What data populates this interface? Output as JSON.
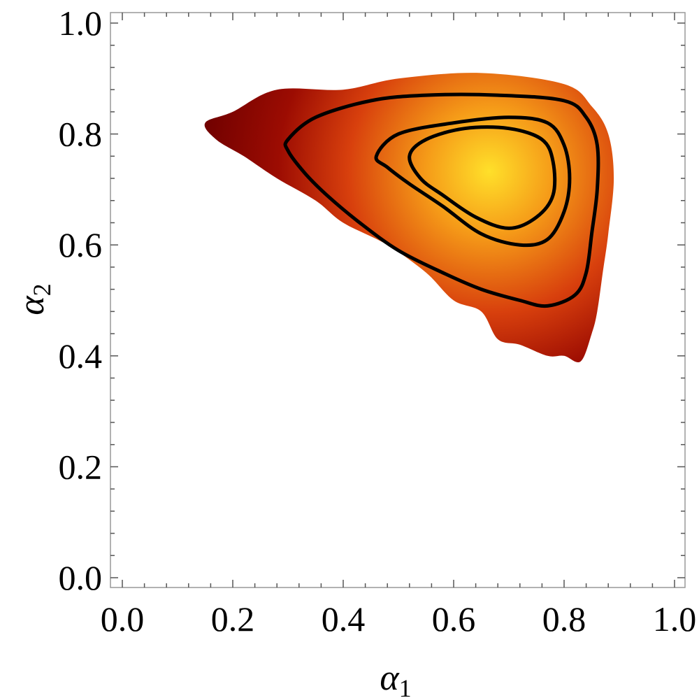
{
  "chart_data": {
    "type": "heatmap",
    "title": "",
    "xlabel": {
      "symbol": "α",
      "subscript": "1"
    },
    "ylabel": {
      "symbol": "α",
      "subscript": "2"
    },
    "xlim": [
      0.0,
      1.0
    ],
    "ylim": [
      0.0,
      1.0
    ],
    "x_ticks": [
      "0.0",
      "0.2",
      "0.4",
      "0.6",
      "0.8",
      "1.0"
    ],
    "y_ticks": [
      "0.0",
      "0.2",
      "0.4",
      "0.6",
      "0.8",
      "1.0"
    ],
    "grid": false,
    "legend": "none",
    "density": {
      "peak": [
        0.66,
        0.73
      ],
      "color_scale": [
        "#7a0000",
        "#c22a0a",
        "#f06a12",
        "#ffd21f"
      ],
      "support": [
        [
          0.15,
          0.82
        ],
        [
          0.2,
          0.84
        ],
        [
          0.28,
          0.88
        ],
        [
          0.4,
          0.88
        ],
        [
          0.5,
          0.9
        ],
        [
          0.65,
          0.91
        ],
        [
          0.8,
          0.89
        ],
        [
          0.85,
          0.85
        ],
        [
          0.88,
          0.8
        ],
        [
          0.89,
          0.72
        ],
        [
          0.88,
          0.62
        ],
        [
          0.87,
          0.55
        ],
        [
          0.86,
          0.48
        ],
        [
          0.85,
          0.44
        ],
        [
          0.83,
          0.39
        ],
        [
          0.8,
          0.4
        ],
        [
          0.77,
          0.4
        ],
        [
          0.72,
          0.42
        ],
        [
          0.68,
          0.43
        ],
        [
          0.65,
          0.48
        ],
        [
          0.6,
          0.5
        ],
        [
          0.55,
          0.55
        ],
        [
          0.48,
          0.6
        ],
        [
          0.4,
          0.64
        ],
        [
          0.35,
          0.68
        ],
        [
          0.28,
          0.72
        ],
        [
          0.22,
          0.76
        ],
        [
          0.17,
          0.79
        ]
      ]
    },
    "contours": [
      {
        "level": "outer",
        "points": [
          [
            0.3,
            0.79
          ],
          [
            0.35,
            0.83
          ],
          [
            0.45,
            0.86
          ],
          [
            0.55,
            0.87
          ],
          [
            0.68,
            0.87
          ],
          [
            0.8,
            0.86
          ],
          [
            0.84,
            0.83
          ],
          [
            0.86,
            0.78
          ],
          [
            0.86,
            0.7
          ],
          [
            0.85,
            0.62
          ],
          [
            0.84,
            0.55
          ],
          [
            0.82,
            0.51
          ],
          [
            0.77,
            0.49
          ],
          [
            0.72,
            0.5
          ],
          [
            0.65,
            0.52
          ],
          [
            0.58,
            0.55
          ],
          [
            0.5,
            0.59
          ],
          [
            0.43,
            0.64
          ],
          [
            0.37,
            0.69
          ],
          [
            0.33,
            0.73
          ],
          [
            0.3,
            0.77
          ]
        ]
      },
      {
        "level": "middle",
        "points": [
          [
            0.46,
            0.76
          ],
          [
            0.5,
            0.8
          ],
          [
            0.6,
            0.82
          ],
          [
            0.7,
            0.83
          ],
          [
            0.77,
            0.82
          ],
          [
            0.8,
            0.78
          ],
          [
            0.81,
            0.72
          ],
          [
            0.8,
            0.66
          ],
          [
            0.77,
            0.61
          ],
          [
            0.72,
            0.6
          ],
          [
            0.65,
            0.62
          ],
          [
            0.58,
            0.67
          ],
          [
            0.52,
            0.71
          ],
          [
            0.48,
            0.74
          ]
        ]
      },
      {
        "level": "inner",
        "points": [
          [
            0.52,
            0.76
          ],
          [
            0.55,
            0.79
          ],
          [
            0.62,
            0.81
          ],
          [
            0.7,
            0.81
          ],
          [
            0.76,
            0.79
          ],
          [
            0.78,
            0.75
          ],
          [
            0.78,
            0.69
          ],
          [
            0.75,
            0.65
          ],
          [
            0.7,
            0.63
          ],
          [
            0.64,
            0.65
          ],
          [
            0.58,
            0.69
          ],
          [
            0.54,
            0.72
          ]
        ]
      }
    ]
  }
}
